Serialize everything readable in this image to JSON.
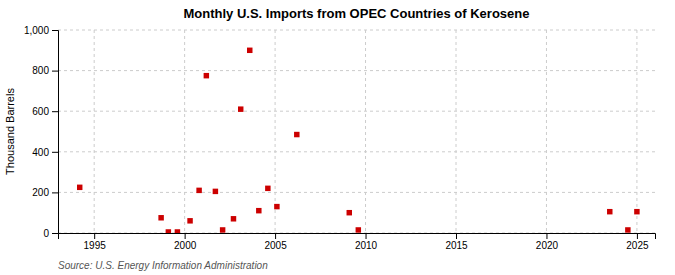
{
  "chart_data": {
    "type": "scatter",
    "title": "Monthly U.S. Imports from OPEC Countries of Kerosene",
    "ylabel": "Thousand Barrels",
    "source": "Source: U.S. Energy Information Administration",
    "color": "#cc0000",
    "marker": "square",
    "grid": true,
    "xlim": [
      1993,
      2026
    ],
    "ylim": [
      0,
      1000
    ],
    "xticks": [
      1995,
      2000,
      2005,
      2010,
      2015,
      2020,
      2025
    ],
    "yticks": [
      0,
      200,
      400,
      600,
      800,
      {
        "value": 1000,
        "label": "1,000"
      }
    ],
    "x": [
      1994.2,
      1998.7,
      1999.1,
      1999.6,
      2000.3,
      2000.8,
      2001.2,
      2001.7,
      2002.1,
      2002.7,
      2003.1,
      2003.6,
      2004.1,
      2004.6,
      2005.1,
      2006.2,
      2009.1,
      2009.6,
      2023.5,
      2024.5,
      2025.0
    ],
    "values": [
      225,
      75,
      5,
      5,
      60,
      210,
      775,
      205,
      15,
      70,
      610,
      900,
      110,
      220,
      130,
      485,
      100,
      15,
      105,
      15,
      105
    ]
  }
}
